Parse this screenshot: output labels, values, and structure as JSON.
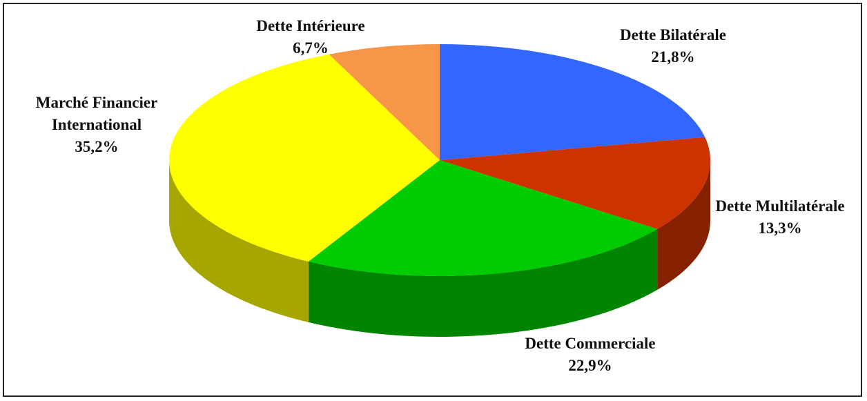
{
  "chart_data": {
    "type": "pie3d",
    "categories": [
      "Dette Bilatérale",
      "Dette Multilatérale",
      "Dette Commerciale",
      "Marché Financier International",
      "Dette Intérieure"
    ],
    "values": [
      21.8,
      13.3,
      22.9,
      35.2,
      6.7
    ],
    "value_labels": [
      "21,8%",
      "13,3%",
      "22,9%",
      "35,2%",
      "6,7%"
    ],
    "colors": [
      "#3366ff",
      "#cc3300",
      "#00cc00",
      "#ffff00",
      "#f79646"
    ]
  }
}
